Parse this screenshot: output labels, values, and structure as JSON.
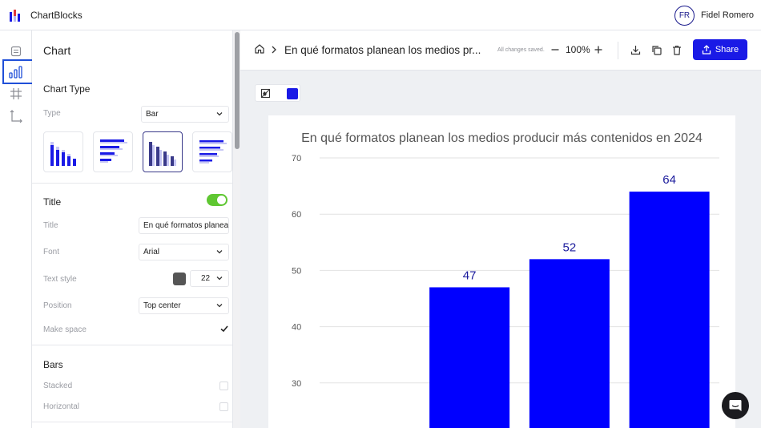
{
  "app": {
    "name": "ChartBlocks",
    "user_initials": "FR",
    "user_name": "Fidel Romero"
  },
  "rail": {
    "items": [
      {
        "name": "data-icon",
        "active": false
      },
      {
        "name": "chart-icon",
        "active": true
      },
      {
        "name": "grid-icon",
        "active": false
      },
      {
        "name": "axes-icon",
        "active": false
      }
    ]
  },
  "panel": {
    "title": "Chart",
    "chart_type": {
      "heading": "Chart Type",
      "type_label": "Type",
      "type_value": "Bar"
    },
    "title_section": {
      "heading": "Title",
      "enabled": true,
      "title_label": "Title",
      "title_value": "En qué formatos planea",
      "font_label": "Font",
      "font_value": "Arial",
      "text_style_label": "Text style",
      "text_color": "#555555",
      "text_size": "22",
      "position_label": "Position",
      "position_value": "Top center",
      "make_space_label": "Make space",
      "make_space": true
    },
    "bars": {
      "heading": "Bars",
      "stacked_label": "Stacked",
      "horizontal_label": "Horizontal"
    }
  },
  "header": {
    "doc_title": "En qué formatos planean los medios pr...",
    "saved_status": "All changes saved.",
    "zoom": "100%",
    "share_label": "Share"
  },
  "colors": {
    "accent": "#1a1ae6",
    "bar": "#0000ff",
    "toggle_on": "#5fc732"
  },
  "chart_data": {
    "type": "bar",
    "title": "En qué formatos planean los medios producir más contenidos en 2024",
    "categories": [
      "",
      "",
      "",
      ""
    ],
    "values": [
      null,
      47,
      52,
      64
    ],
    "data_labels": [
      "",
      "47",
      "52",
      "64"
    ],
    "ylim": [
      26,
      70
    ],
    "yticks": [
      30,
      40,
      50,
      60,
      70
    ],
    "grid": true,
    "xlabel": "",
    "ylabel": ""
  }
}
